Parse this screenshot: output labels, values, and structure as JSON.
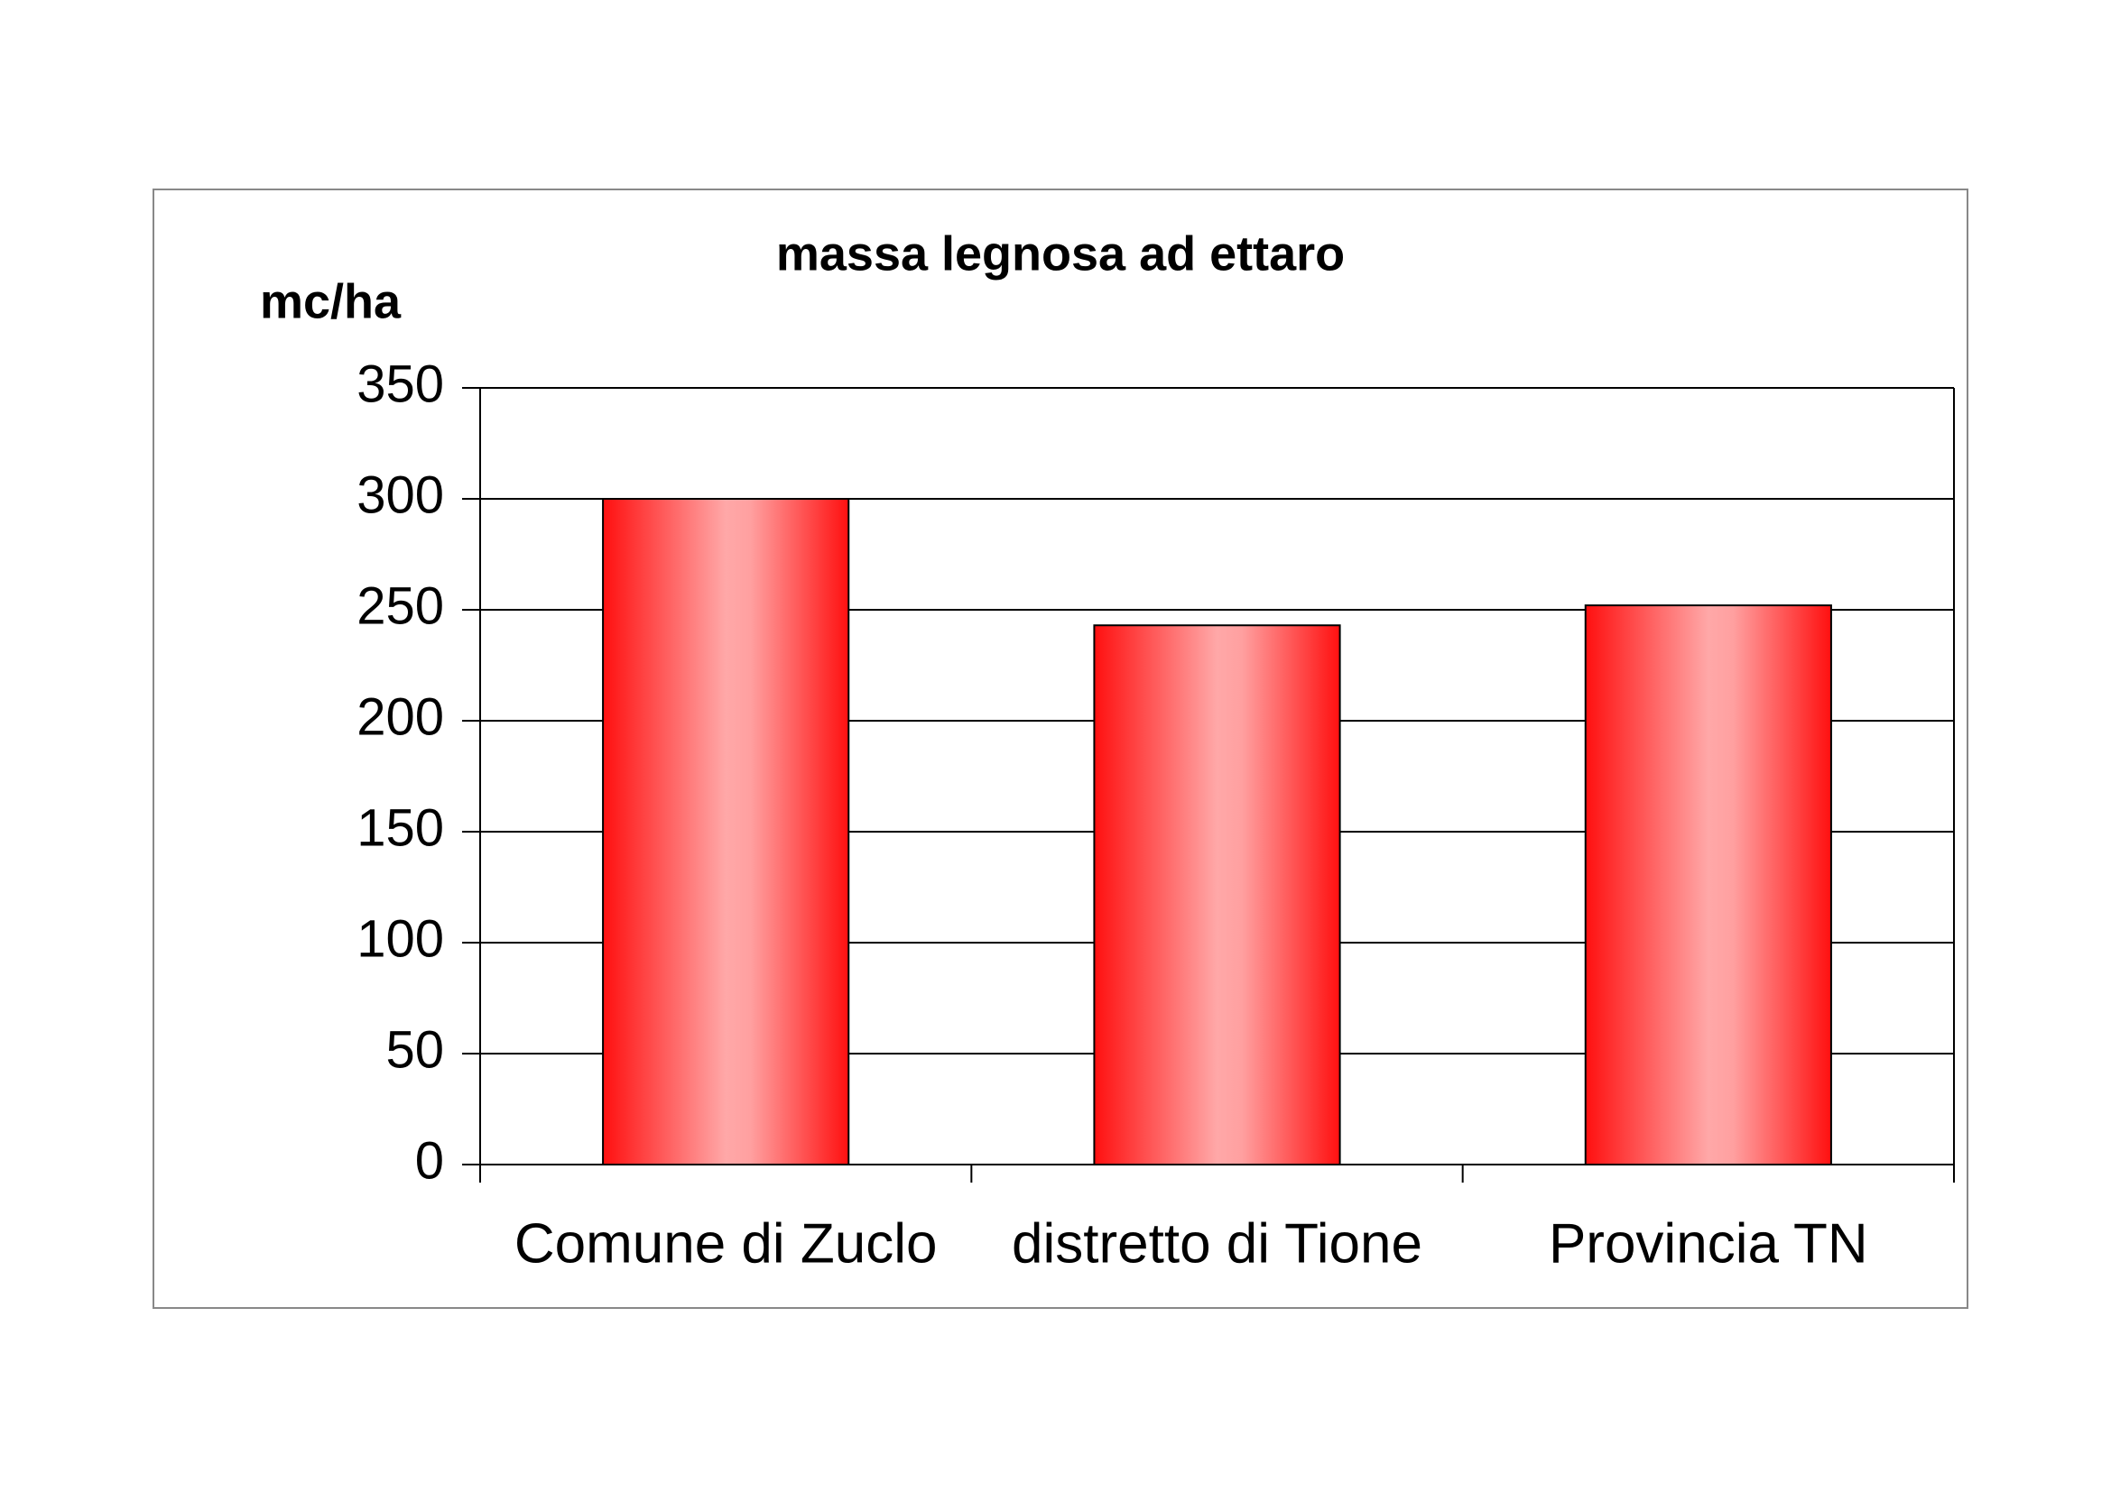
{
  "chart_data": {
    "type": "bar",
    "title": "massa legnosa ad ettaro",
    "y_label": "mc/ha",
    "categories": [
      "Comune di Zuclo",
      "distretto di Tione",
      "Provincia TN"
    ],
    "values": [
      300,
      243,
      252
    ],
    "color": "#ff1a1a",
    "ylim": [
      0,
      350
    ],
    "yticks": [
      0,
      50,
      100,
      150,
      200,
      250,
      300,
      350
    ],
    "grid": true
  }
}
